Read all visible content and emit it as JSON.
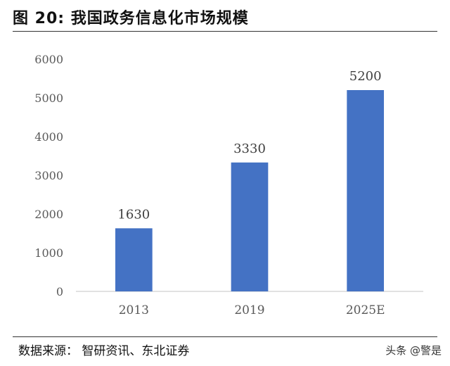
{
  "figure": {
    "title": "图  20:  我国政务信息化市场规模",
    "source": "数据来源：  智研资讯、东北证券",
    "watermark": "头条 @警是"
  },
  "chart_data": {
    "type": "bar",
    "title": "",
    "xlabel": "",
    "ylabel": "",
    "categories": [
      "2013",
      "2019",
      "2025E"
    ],
    "values": [
      1630,
      3330,
      5200
    ],
    "data_labels": [
      "1630",
      "3330",
      "5200"
    ],
    "ylim": [
      0,
      6000
    ],
    "yticks": [
      "0",
      "1000",
      "2000",
      "3000",
      "4000",
      "5000",
      "6000"
    ],
    "grid": false,
    "legend": "none",
    "bar_color": "#4472C4",
    "axis_color": "#d9d9d9"
  }
}
